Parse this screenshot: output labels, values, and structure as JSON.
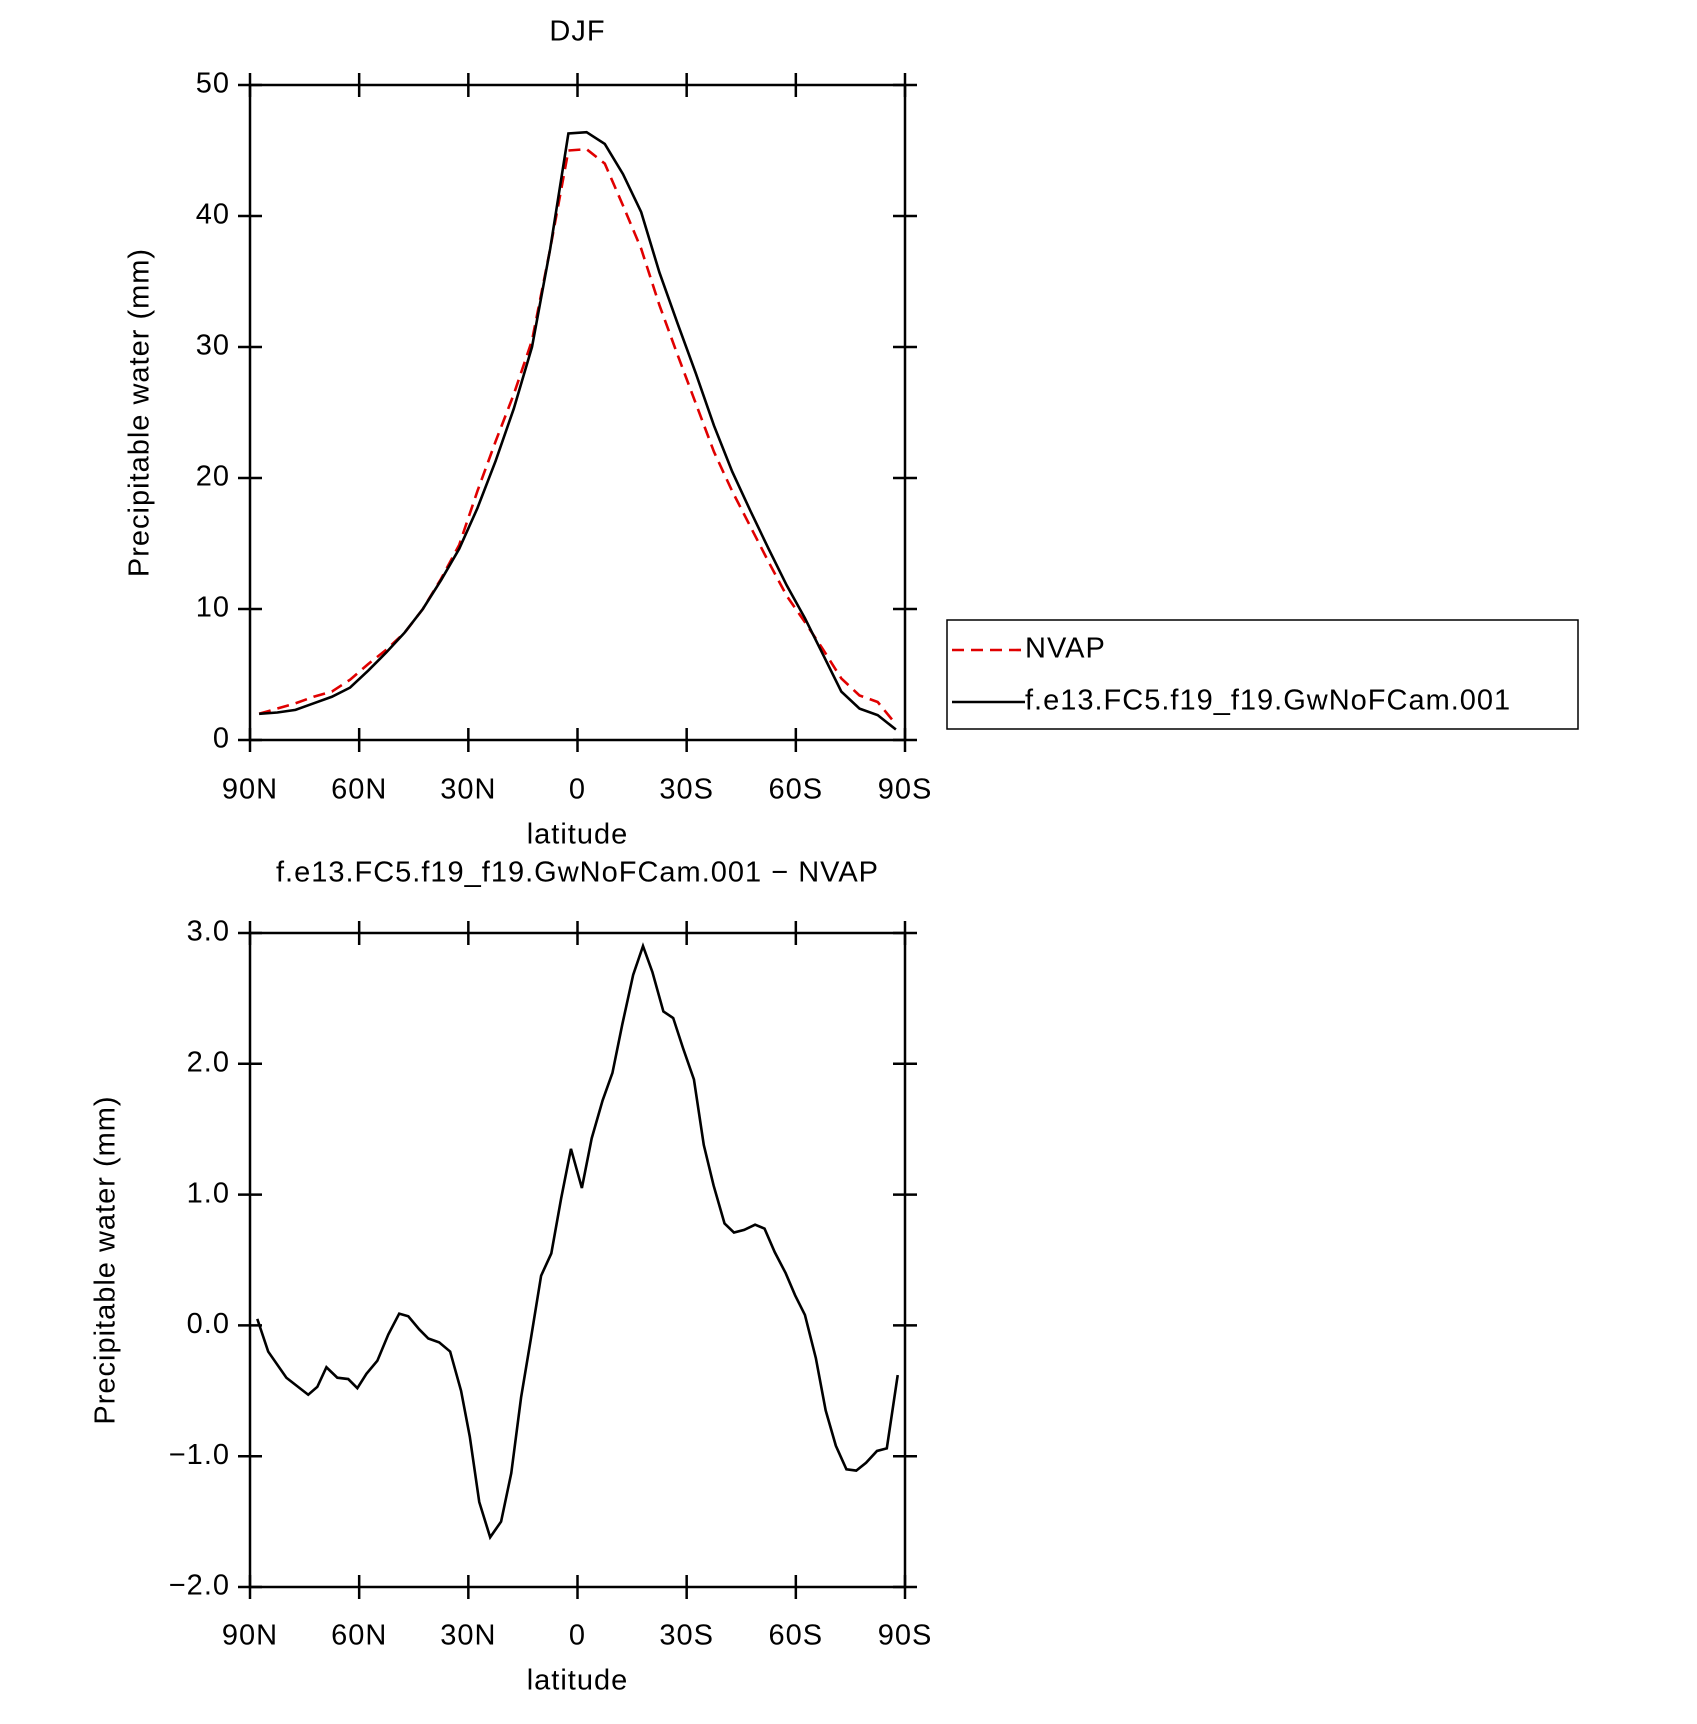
{
  "chart_data": [
    {
      "type": "line",
      "title": "DJF",
      "xlabel": "latitude",
      "ylabel": "Precipitable water (mm)",
      "xlim": [
        90,
        -90
      ],
      "xticks": [
        {
          "value": 90,
          "label": "90N"
        },
        {
          "value": 60,
          "label": "60N"
        },
        {
          "value": 30,
          "label": "30N"
        },
        0,
        {
          "value": -30,
          "label": "30S"
        },
        {
          "value": -60,
          "label": "60S"
        },
        {
          "value": -90,
          "label": "90S"
        }
      ],
      "ylim": [
        0,
        50
      ],
      "yticks": [
        0,
        10,
        20,
        30,
        40,
        50
      ],
      "x": [
        87.5,
        82.5,
        77.5,
        72.5,
        67.5,
        62.5,
        57.5,
        52.5,
        47.5,
        42.5,
        37.5,
        32.5,
        27.5,
        22.5,
        17.5,
        12.5,
        7.5,
        2.5,
        -2.5,
        -7.5,
        -12.5,
        -17.5,
        -22.5,
        -27.5,
        -32.5,
        -37.5,
        -42.5,
        -47.5,
        -52.5,
        -57.5,
        -62.5,
        -67.5,
        -72.5,
        -77.5,
        -82.5,
        -87.5
      ],
      "legend": "right",
      "series": [
        {
          "name": "NVAP",
          "color": "#e00000",
          "line_style": "dashed",
          "values": [
            2.0,
            2.4,
            2.8,
            3.3,
            3.7,
            4.6,
            5.8,
            6.9,
            8.2,
            10.0,
            12.3,
            14.9,
            19.0,
            22.8,
            26.4,
            30.5,
            37.5,
            45.0,
            45.1,
            44.0,
            40.8,
            37.5,
            33.2,
            29.4,
            25.7,
            22.0,
            19.0,
            16.3,
            13.6,
            11.0,
            9.0,
            6.9,
            4.7,
            3.4,
            2.9,
            1.2
          ]
        },
        {
          "name": "f.e13.FC5.f19_f19.GwNoFCam.001",
          "color": "#000000",
          "line_style": "solid",
          "values": [
            2.0,
            2.1,
            2.3,
            2.8,
            3.3,
            4.0,
            5.3,
            6.7,
            8.2,
            10.0,
            12.2,
            14.6,
            17.7,
            21.3,
            25.3,
            30.0,
            37.5,
            46.3,
            46.4,
            45.5,
            43.2,
            40.3,
            35.7,
            31.8,
            28.0,
            24.0,
            20.5,
            17.5,
            14.6,
            11.8,
            9.3,
            6.5,
            3.7,
            2.4,
            1.9,
            0.8
          ]
        }
      ]
    },
    {
      "type": "line",
      "title": "f.e13.FC5.f19_f19.GwNoFCam.001 − NVAP",
      "xlabel": "latitude",
      "ylabel": "Precipitable water (mm)",
      "xlim": [
        90,
        -90
      ],
      "xticks": [
        {
          "value": 90,
          "label": "90N"
        },
        {
          "value": 60,
          "label": "60N"
        },
        {
          "value": 30,
          "label": "30N"
        },
        0,
        {
          "value": -30,
          "label": "30S"
        },
        {
          "value": -60,
          "label": "60S"
        },
        {
          "value": -90,
          "label": "90S"
        }
      ],
      "ylim": [
        -2,
        3
      ],
      "yticks": [
        {
          "value": -2,
          "label": "−2.0"
        },
        {
          "value": -1,
          "label": "−1.0"
        },
        {
          "value": 0,
          "label": "0.0"
        },
        {
          "value": 1,
          "label": "1.0"
        },
        {
          "value": 2,
          "label": "2.0"
        },
        {
          "value": 3,
          "label": "3.0"
        }
      ],
      "x": [
        88,
        85,
        80,
        74,
        71.5,
        69,
        66,
        63,
        60.5,
        58,
        55,
        52,
        49,
        46.5,
        43.5,
        41,
        38,
        35,
        32,
        29.6,
        27,
        24,
        21,
        18.2,
        15.5,
        12.8,
        10,
        7.2,
        4.5,
        1.8,
        -1.2,
        -3.9,
        -6.9,
        -9.6,
        -12.3,
        -15.3,
        -18,
        -20.6,
        -23.6,
        -26.3,
        -29,
        -32,
        -34.7,
        -37.4,
        -40.4,
        -43,
        -45.8,
        -48.8,
        -51.4,
        -54.2,
        -57.2,
        -59.8,
        -62.5,
        -65.5,
        -68.2,
        -71,
        -73.9,
        -76.6,
        -79.3,
        -82.3,
        -85,
        -88
      ],
      "series": [
        {
          "color": "#000000",
          "line_style": "solid",
          "values": [
            0.05,
            -0.2,
            -0.4,
            -0.53,
            -0.47,
            -0.32,
            -0.4,
            -0.41,
            -0.48,
            -0.37,
            -0.27,
            -0.07,
            0.09,
            0.07,
            -0.03,
            -0.1,
            -0.13,
            -0.2,
            -0.5,
            -0.85,
            -1.35,
            -1.62,
            -1.5,
            -1.13,
            -0.55,
            -0.1,
            0.38,
            0.55,
            0.97,
            1.35,
            1.05,
            1.43,
            1.72,
            1.93,
            2.3,
            2.68,
            2.9,
            2.7,
            2.4,
            2.35,
            2.12,
            1.88,
            1.38,
            1.07,
            0.78,
            0.71,
            0.73,
            0.77,
            0.74,
            0.56,
            0.4,
            0.23,
            0.08,
            -0.25,
            -0.65,
            -0.92,
            -1.1,
            -1.11,
            -1.05,
            -0.96,
            -0.94,
            -0.38
          ]
        }
      ]
    }
  ]
}
